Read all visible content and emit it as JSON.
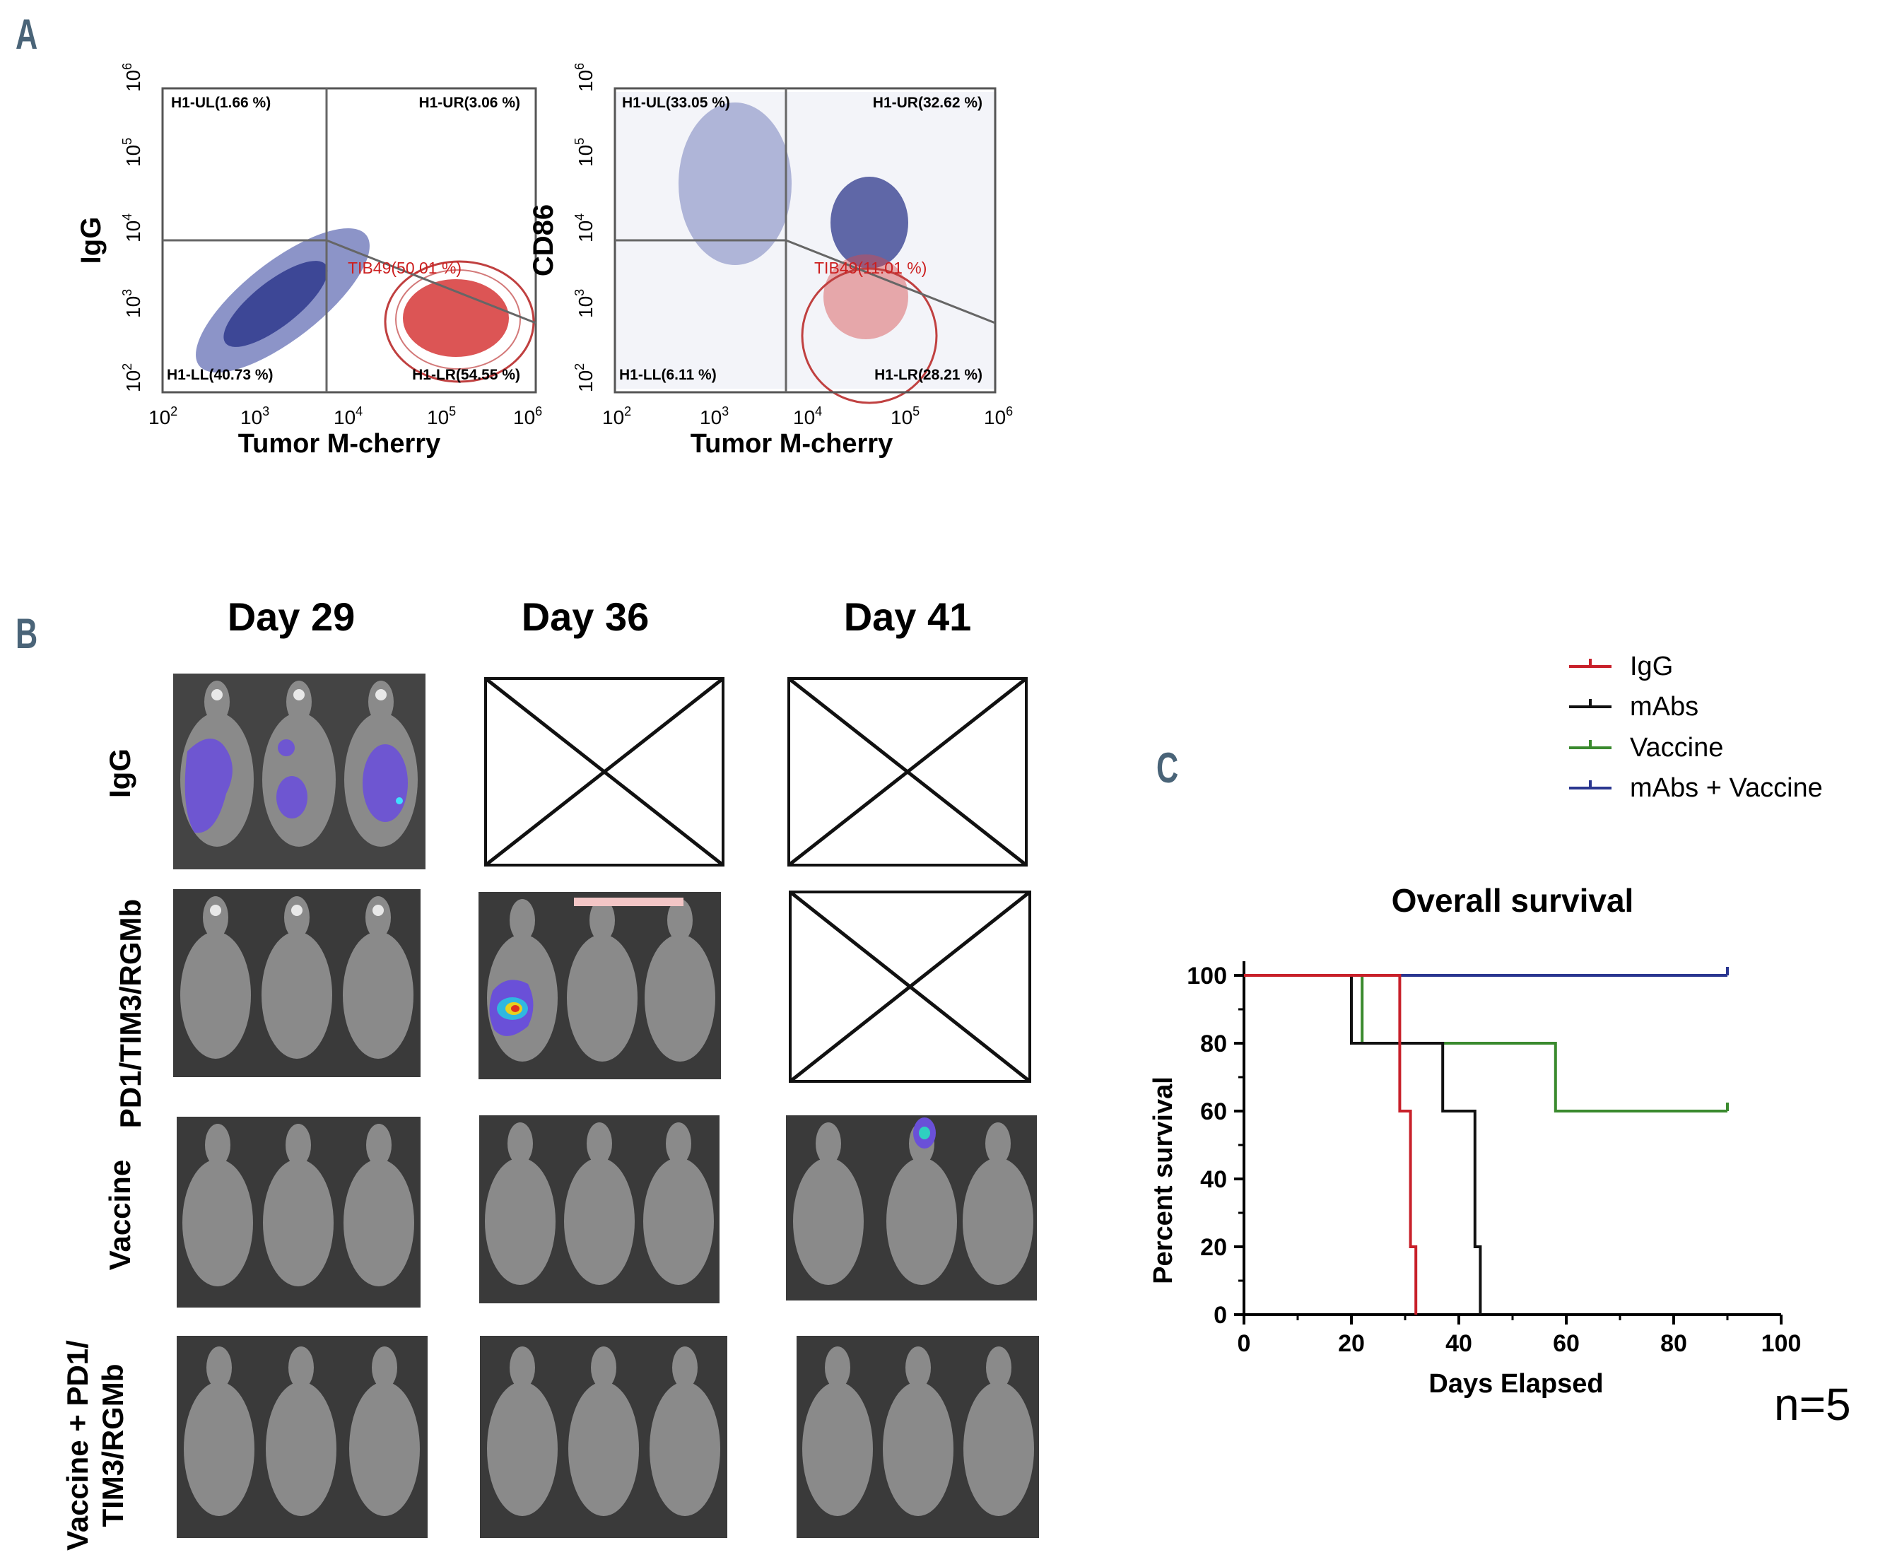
{
  "panels": {
    "a": "A",
    "b": "B",
    "c": "C"
  },
  "flow_plots": [
    {
      "ylabel": "IgG",
      "xlabel": "Tumor M-cherry",
      "x_ticks": [
        "2",
        "3",
        "4",
        "5",
        "6"
      ],
      "y_ticks": [
        "2",
        "3",
        "4",
        "5",
        "6"
      ],
      "tick_base": "10",
      "gates": {
        "ul": "H1-UL(1.66 %)",
        "ur": "H1-UR(3.06 %)",
        "ll": "H1-LL(40.73 %)",
        "lr": "H1-LR(54.55 %)",
        "tib": "TIB49(50.01 %)"
      }
    },
    {
      "ylabel": "CD86",
      "xlabel": "Tumor M-cherry",
      "x_ticks": [
        "2",
        "3",
        "4",
        "5",
        "6"
      ],
      "y_ticks": [
        "2",
        "3",
        "4",
        "5",
        "6"
      ],
      "tick_base": "10",
      "gates": {
        "ul": "H1-UL(33.05 %)",
        "ur": "H1-UR(32.62 %)",
        "ll": "H1-LL(6.11 %)",
        "lr": "H1-LR(28.21 %)",
        "tib": "TIB49(11.01 %)"
      }
    }
  ],
  "imaging": {
    "days": [
      "Day 29",
      "Day 36",
      "Day 41"
    ],
    "rows": {
      "r1": "IgG",
      "r2": "PD1/TIM3/RGMb",
      "r3": "Vaccine",
      "r4a": "Vaccine + PD1/",
      "r4b": "TIM3/RGMb"
    }
  },
  "chart_data": {
    "type": "line",
    "subtype": "kaplan-meier step",
    "title": "Overall survival",
    "xlabel": "Days Elapsed",
    "ylabel": "Percent survival",
    "xlim": [
      0,
      100
    ],
    "ylim": [
      0,
      100
    ],
    "x_ticks": [
      "0",
      "20",
      "40",
      "60",
      "80",
      "100"
    ],
    "y_ticks": [
      "0",
      "20",
      "40",
      "60",
      "80",
      "100"
    ],
    "series": [
      {
        "name": "IgG",
        "color": "#c8202a",
        "x": [
          0,
          29,
          31,
          32
        ],
        "y": [
          100,
          60,
          20,
          0
        ]
      },
      {
        "name": "mAbs",
        "color": "#111111",
        "x": [
          0,
          20,
          37,
          43,
          44
        ],
        "y": [
          100,
          80,
          60,
          20,
          0
        ]
      },
      {
        "name": "Vaccine",
        "color": "#3a8a2e",
        "x": [
          0,
          22,
          58,
          90
        ],
        "y": [
          100,
          80,
          60,
          60
        ]
      },
      {
        "name": "mAbs + Vaccine",
        "color": "#2a3690",
        "x": [
          0,
          90
        ],
        "y": [
          100,
          100
        ]
      }
    ],
    "annotation": "n=5"
  }
}
